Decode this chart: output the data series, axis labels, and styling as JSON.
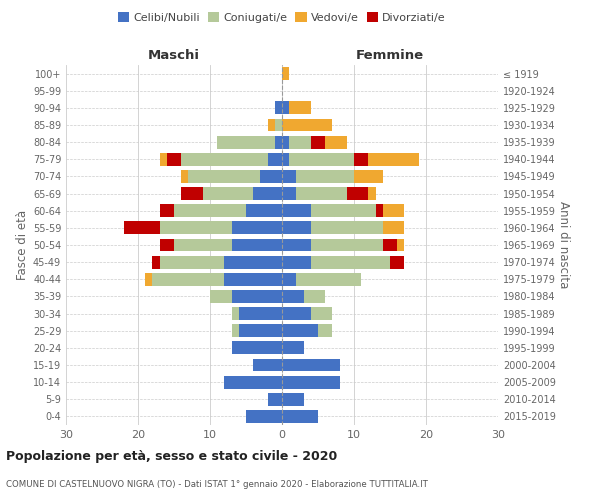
{
  "age_groups": [
    "0-4",
    "5-9",
    "10-14",
    "15-19",
    "20-24",
    "25-29",
    "30-34",
    "35-39",
    "40-44",
    "45-49",
    "50-54",
    "55-59",
    "60-64",
    "65-69",
    "70-74",
    "75-79",
    "80-84",
    "85-89",
    "90-94",
    "95-99",
    "100+"
  ],
  "birth_years": [
    "2015-2019",
    "2010-2014",
    "2005-2009",
    "2000-2004",
    "1995-1999",
    "1990-1994",
    "1985-1989",
    "1980-1984",
    "1975-1979",
    "1970-1974",
    "1965-1969",
    "1960-1964",
    "1955-1959",
    "1950-1954",
    "1945-1949",
    "1940-1944",
    "1935-1939",
    "1930-1934",
    "1925-1929",
    "1920-1924",
    "≤ 1919"
  ],
  "maschi": {
    "celibi": [
      5,
      2,
      8,
      4,
      7,
      6,
      6,
      7,
      8,
      8,
      7,
      7,
      5,
      4,
      3,
      2,
      1,
      0,
      1,
      0,
      0
    ],
    "coniugati": [
      0,
      0,
      0,
      0,
      0,
      1,
      1,
      3,
      10,
      9,
      8,
      10,
      10,
      7,
      10,
      12,
      8,
      1,
      0,
      0,
      0
    ],
    "vedovi": [
      0,
      0,
      0,
      0,
      0,
      0,
      0,
      0,
      1,
      0,
      0,
      0,
      0,
      0,
      1,
      1,
      0,
      1,
      0,
      0,
      0
    ],
    "divorziati": [
      0,
      0,
      0,
      0,
      0,
      0,
      0,
      0,
      0,
      1,
      2,
      5,
      2,
      3,
      0,
      2,
      0,
      0,
      0,
      0,
      0
    ]
  },
  "femmine": {
    "nubili": [
      5,
      3,
      8,
      8,
      3,
      5,
      4,
      3,
      2,
      4,
      4,
      4,
      4,
      2,
      2,
      1,
      1,
      0,
      1,
      0,
      0
    ],
    "coniugate": [
      0,
      0,
      0,
      0,
      0,
      2,
      3,
      3,
      9,
      11,
      10,
      10,
      9,
      7,
      8,
      9,
      3,
      0,
      0,
      0,
      0
    ],
    "vedove": [
      0,
      0,
      0,
      0,
      0,
      0,
      0,
      0,
      0,
      0,
      1,
      3,
      3,
      1,
      4,
      7,
      3,
      7,
      3,
      0,
      1
    ],
    "divorziate": [
      0,
      0,
      0,
      0,
      0,
      0,
      0,
      0,
      0,
      2,
      2,
      0,
      1,
      3,
      0,
      2,
      2,
      0,
      0,
      0,
      0
    ]
  },
  "colors": {
    "celibi": "#4472C4",
    "coniugati": "#b5c99a",
    "vedovi": "#f0a830",
    "divorziati": "#c00000"
  },
  "title": "Popolazione per età, sesso e stato civile - 2020",
  "subtitle": "COMUNE DI CASTELNUOVO NIGRA (TO) - Dati ISTAT 1° gennaio 2020 - Elaborazione TUTTITALIA.IT",
  "xlabel_maschi": "Maschi",
  "xlabel_femmine": "Femmine",
  "ylabel_left": "Fasce di età",
  "ylabel_right": "Anni di nascita",
  "xlim": 30,
  "bg_color": "#ffffff",
  "grid_color": "#cccccc"
}
